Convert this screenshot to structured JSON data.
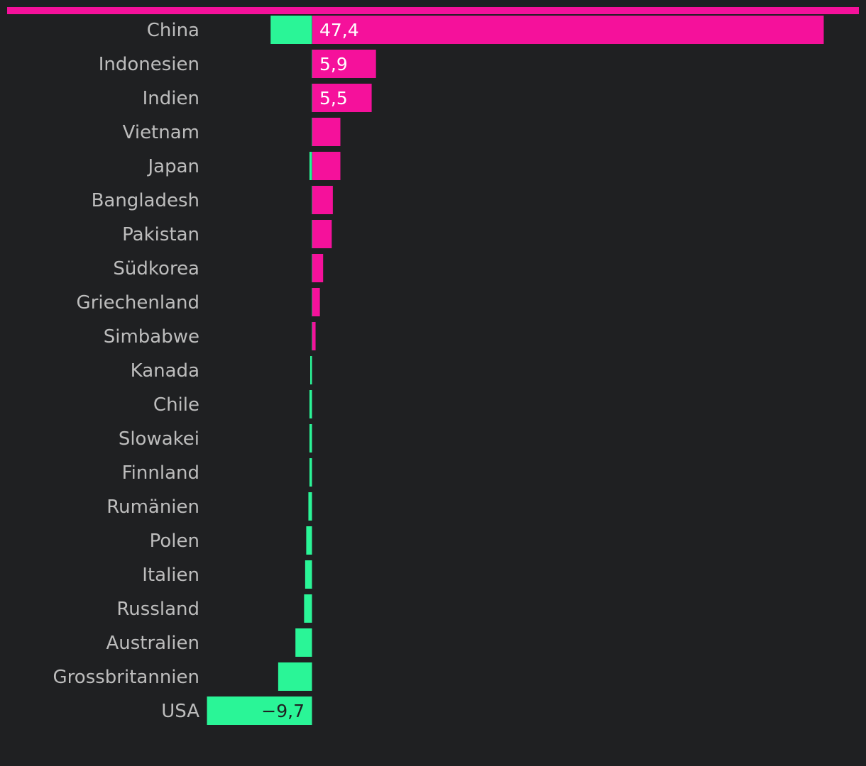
{
  "colors": {
    "background": "#1f2022",
    "positive": "#f5119b",
    "negative": "#2af597",
    "label": "#bdbdbd",
    "value_on_positive": "#ffffff",
    "value_on_negative": "#1f2022"
  },
  "chart_data": {
    "type": "bar",
    "orientation": "horizontal",
    "title": "",
    "xlabel": "",
    "ylabel": "",
    "grid": false,
    "legend": "none",
    "categories": [
      "China",
      "Indonesien",
      "Indien",
      "Vietnam",
      "Japan",
      "Bangladesh",
      "Pakistan",
      "Südkorea",
      "Griechenland",
      "Simbabwe",
      "Kanada",
      "Chile",
      "Slowakei",
      "Finnland",
      "Rumänien",
      "Polen",
      "Italien",
      "Russland",
      "Australien",
      "Grossbritannien",
      "USA"
    ],
    "series": [
      {
        "values": [
          47.4,
          5.9,
          5.5,
          2.6,
          2.6,
          1.9,
          1.8,
          1.0,
          0.7,
          0.3,
          0.0,
          0.0,
          0.0,
          0.0,
          0.0,
          0.0,
          0.0,
          0.0,
          0.0,
          0.0,
          0.0
        ],
        "color": "#f5119b"
      },
      {
        "values": [
          -3.8,
          0.0,
          0.0,
          0.0,
          -0.2,
          0.0,
          0.0,
          0.0,
          0.0,
          0.0,
          -0.1,
          -0.2,
          -0.2,
          -0.2,
          -0.3,
          -0.5,
          -0.6,
          -0.7,
          -1.5,
          -3.1,
          -9.7
        ],
        "color": "#2af597"
      }
    ],
    "value_labels": {
      "China": "47,4",
      "Indonesien": "5,9",
      "Indien": "5,5",
      "USA": "−9,7"
    },
    "xlim": [
      -9.7,
      47.4
    ]
  }
}
